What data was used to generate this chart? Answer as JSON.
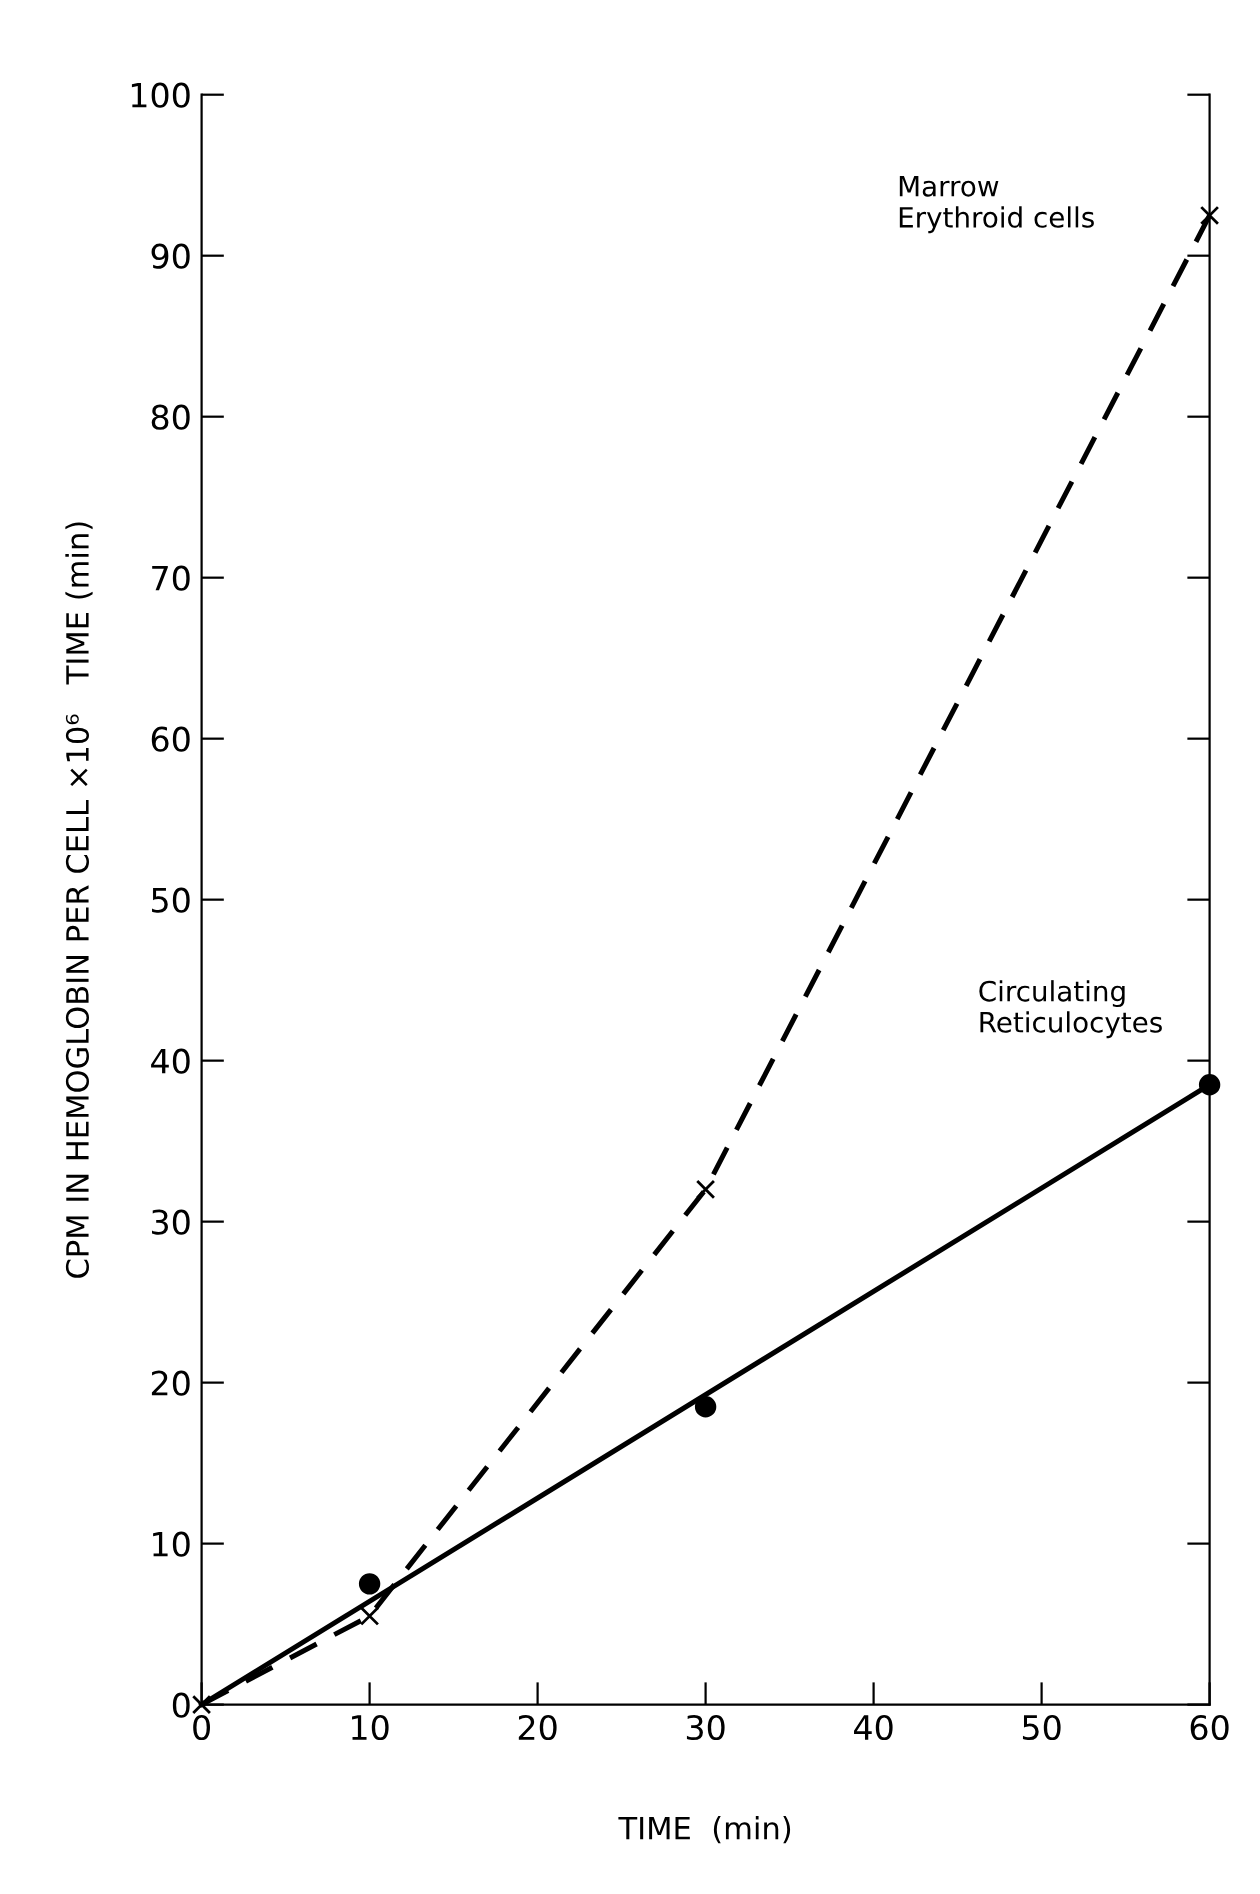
{
  "chart_data": {
    "type": "line",
    "xlabel": "TIME  (min)",
    "ylabel": "CPM IN HEMOGLOBIN PER CELL ×10⁶   TIME (min)",
    "series": [
      {
        "x": [
          0,
          10,
          30,
          60
        ],
        "values": [
          0,
          5.5,
          32,
          92.5
        ],
        "color": "#000000",
        "line_style": "dashed",
        "marker": "cross"
      },
      {
        "type": "scatter",
        "x": [
          10,
          30,
          60
        ],
        "values": [
          7.5,
          18.5,
          38.5
        ],
        "color": "#000000",
        "marker": "circle"
      },
      {
        "x": [
          0,
          60
        ],
        "values": [
          0,
          38.5
        ],
        "color": "#000000",
        "line_style": "solid",
        "marker": "none"
      }
    ],
    "annotations": [
      "Marrow\nErythroid cells",
      "Circulating\nReticulocytes"
    ],
    "xlim": [
      0,
      60
    ],
    "ylim": [
      0,
      100
    ],
    "xticks": [
      0,
      10,
      20,
      30,
      40,
      50,
      60
    ],
    "yticks": [
      0,
      10,
      20,
      30,
      40,
      50,
      60,
      70,
      80,
      90,
      100
    ],
    "grid": false,
    "legend": false
  }
}
